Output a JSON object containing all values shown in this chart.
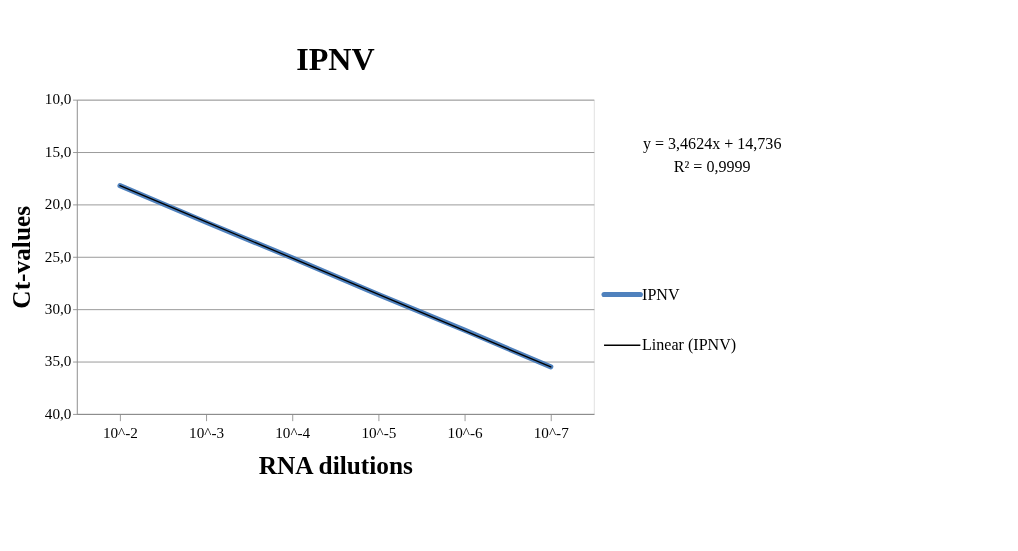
{
  "chart_data": {
    "type": "line",
    "title": "IPNV",
    "xlabel": "RNA dilutions",
    "ylabel": "Ct-values",
    "categories": [
      "10^-2",
      "10^-3",
      "10^-4",
      "10^-5",
      "10^-6",
      "10^-7"
    ],
    "series": [
      {
        "name": "IPNV",
        "color": "#4f81bd",
        "values": [
          18.2,
          21.7,
          25.1,
          28.6,
          32.0,
          35.5
        ]
      },
      {
        "name": "Linear (IPNV)",
        "type": "line",
        "color": "#000000",
        "x": [
          "10^-2",
          "10^-3",
          "10^-4",
          "10^-5",
          "10^-6",
          "10^-7"
        ],
        "values": [
          18.2,
          21.66,
          25.12,
          28.58,
          32.05,
          35.51
        ]
      }
    ],
    "ylim": [
      40,
      10
    ],
    "yticks": [
      {
        "value": 10,
        "label": "10,0"
      },
      {
        "value": 15,
        "label": "15,0"
      },
      {
        "value": 20,
        "label": "20,0"
      },
      {
        "value": 25,
        "label": "25,0"
      },
      {
        "value": 30,
        "label": "30,0"
      },
      {
        "value": 35,
        "label": "35,0"
      },
      {
        "value": 40,
        "label": "40,0"
      }
    ],
    "grid": "y",
    "legend": "right",
    "marker": "none",
    "line_style": "solid",
    "annotations": [
      "y = 3,4624x + 14,736",
      "R² = 0,9999"
    ]
  }
}
